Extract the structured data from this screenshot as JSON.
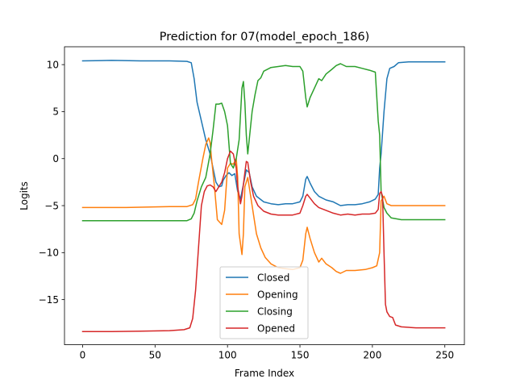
{
  "chart_data": {
    "type": "line",
    "title": "Prediction for 07(model_epoch_186)",
    "xlabel": "Frame Index",
    "ylabel": "Logits",
    "xlim": [
      -12.5,
      263.5
    ],
    "ylim": [
      -19.8,
      11.9
    ],
    "xticks": [
      0,
      50,
      100,
      150,
      200,
      250
    ],
    "yticks": [
      -15,
      -10,
      -5,
      0,
      5,
      10
    ],
    "grid": false,
    "legend_position": "lower-center",
    "series": [
      {
        "name": "Closed",
        "color": "#1f77b4",
        "points": [
          [
            0,
            10.4
          ],
          [
            20,
            10.45
          ],
          [
            40,
            10.4
          ],
          [
            60,
            10.4
          ],
          [
            72,
            10.35
          ],
          [
            75,
            10.2
          ],
          [
            77,
            8.5
          ],
          [
            79,
            6.0
          ],
          [
            82,
            4.0
          ],
          [
            85,
            2.0
          ],
          [
            88,
            0.5
          ],
          [
            90,
            -1.0
          ],
          [
            92,
            -2.5
          ],
          [
            94,
            -3.0
          ],
          [
            96,
            -2.9
          ],
          [
            97,
            -2.3
          ],
          [
            99,
            -1.8
          ],
          [
            101,
            -1.5
          ],
          [
            103,
            -1.8
          ],
          [
            105,
            -1.6
          ],
          [
            107,
            -3.5
          ],
          [
            109,
            -4.3
          ],
          [
            110,
            -3.5
          ],
          [
            112,
            -2.0
          ],
          [
            113,
            -1.2
          ],
          [
            115,
            -1.5
          ],
          [
            117,
            -3.0
          ],
          [
            120,
            -4.0
          ],
          [
            125,
            -4.6
          ],
          [
            130,
            -4.8
          ],
          [
            135,
            -4.9
          ],
          [
            140,
            -4.8
          ],
          [
            145,
            -4.8
          ],
          [
            150,
            -4.6
          ],
          [
            152,
            -4.0
          ],
          [
            154,
            -2.2
          ],
          [
            155,
            -1.9
          ],
          [
            157,
            -2.6
          ],
          [
            160,
            -3.5
          ],
          [
            163,
            -4.0
          ],
          [
            168,
            -4.4
          ],
          [
            173,
            -4.6
          ],
          [
            178,
            -5.0
          ],
          [
            183,
            -4.9
          ],
          [
            188,
            -4.9
          ],
          [
            193,
            -4.8
          ],
          [
            198,
            -4.6
          ],
          [
            202,
            -4.3
          ],
          [
            204,
            -3.8
          ],
          [
            205,
            -1.0
          ],
          [
            206,
            0.5
          ],
          [
            208,
            5.0
          ],
          [
            210,
            8.5
          ],
          [
            212,
            9.6
          ],
          [
            215,
            9.8
          ],
          [
            218,
            10.2
          ],
          [
            225,
            10.3
          ],
          [
            235,
            10.3
          ],
          [
            250,
            10.3
          ]
        ]
      },
      {
        "name": "Opening",
        "color": "#ff7f0e",
        "points": [
          [
            0,
            -5.2
          ],
          [
            30,
            -5.2
          ],
          [
            60,
            -5.1
          ],
          [
            72,
            -5.1
          ],
          [
            76,
            -4.9
          ],
          [
            78,
            -4.3
          ],
          [
            80,
            -2.5
          ],
          [
            83,
            0.0
          ],
          [
            85,
            1.5
          ],
          [
            87,
            2.2
          ],
          [
            88,
            1.7
          ],
          [
            89,
            0.0
          ],
          [
            91,
            -3.0
          ],
          [
            93,
            -6.5
          ],
          [
            96,
            -7.0
          ],
          [
            98,
            -5.5
          ],
          [
            100,
            -1.0
          ],
          [
            102,
            -0.5
          ],
          [
            104,
            -0.6
          ],
          [
            106,
            0.0
          ],
          [
            107,
            -2.0
          ],
          [
            108,
            -8.0
          ],
          [
            110,
            -10.2
          ],
          [
            111,
            -8.0
          ],
          [
            112,
            -3.0
          ],
          [
            114,
            -2.0
          ],
          [
            116,
            -4.0
          ],
          [
            118,
            -6.0
          ],
          [
            120,
            -8.0
          ],
          [
            123,
            -9.5
          ],
          [
            126,
            -10.5
          ],
          [
            130,
            -11.2
          ],
          [
            135,
            -11.6
          ],
          [
            140,
            -11.7
          ],
          [
            145,
            -11.8
          ],
          [
            150,
            -11.6
          ],
          [
            152,
            -10.8
          ],
          [
            154,
            -8.0
          ],
          [
            155,
            -7.3
          ],
          [
            157,
            -8.5
          ],
          [
            160,
            -10.0
          ],
          [
            163,
            -11.0
          ],
          [
            165,
            -10.6
          ],
          [
            168,
            -11.2
          ],
          [
            172,
            -11.6
          ],
          [
            175,
            -12.0
          ],
          [
            178,
            -12.2
          ],
          [
            182,
            -11.9
          ],
          [
            188,
            -11.9
          ],
          [
            195,
            -11.8
          ],
          [
            200,
            -11.6
          ],
          [
            203,
            -11.4
          ],
          [
            205,
            -10.0
          ],
          [
            206,
            -4.5
          ],
          [
            208,
            -4.0
          ],
          [
            210,
            -4.8
          ],
          [
            213,
            -5.0
          ],
          [
            220,
            -5.0
          ],
          [
            235,
            -5.0
          ],
          [
            250,
            -5.0
          ]
        ]
      },
      {
        "name": "Closing",
        "color": "#2ca02c",
        "points": [
          [
            0,
            -6.6
          ],
          [
            30,
            -6.6
          ],
          [
            60,
            -6.6
          ],
          [
            72,
            -6.6
          ],
          [
            75,
            -6.4
          ],
          [
            77,
            -5.8
          ],
          [
            79,
            -4.5
          ],
          [
            82,
            -3.0
          ],
          [
            85,
            -2.0
          ],
          [
            88,
            0.5
          ],
          [
            90,
            3.0
          ],
          [
            92,
            5.8
          ],
          [
            94,
            5.8
          ],
          [
            96,
            5.9
          ],
          [
            98,
            5.0
          ],
          [
            100,
            3.5
          ],
          [
            102,
            -0.5
          ],
          [
            104,
            -1.0
          ],
          [
            106,
            0.0
          ],
          [
            108,
            2.0
          ],
          [
            110,
            7.5
          ],
          [
            111,
            8.2
          ],
          [
            112,
            6.0
          ],
          [
            113,
            2.5
          ],
          [
            114,
            0.5
          ],
          [
            115,
            2.0
          ],
          [
            117,
            5.0
          ],
          [
            119,
            6.8
          ],
          [
            121,
            8.3
          ],
          [
            123,
            8.6
          ],
          [
            125,
            9.3
          ],
          [
            130,
            9.7
          ],
          [
            135,
            9.8
          ],
          [
            140,
            9.9
          ],
          [
            145,
            9.8
          ],
          [
            150,
            9.8
          ],
          [
            152,
            9.3
          ],
          [
            154,
            6.5
          ],
          [
            155,
            5.5
          ],
          [
            157,
            6.5
          ],
          [
            160,
            7.5
          ],
          [
            163,
            8.5
          ],
          [
            165,
            8.3
          ],
          [
            168,
            9.0
          ],
          [
            172,
            9.5
          ],
          [
            175,
            9.9
          ],
          [
            178,
            10.1
          ],
          [
            182,
            9.8
          ],
          [
            188,
            9.8
          ],
          [
            193,
            9.6
          ],
          [
            198,
            9.4
          ],
          [
            202,
            9.2
          ],
          [
            204,
            4.0
          ],
          [
            205,
            2.5
          ],
          [
            206,
            -3.5
          ],
          [
            208,
            -5.2
          ],
          [
            210,
            -5.8
          ],
          [
            213,
            -6.3
          ],
          [
            220,
            -6.5
          ],
          [
            235,
            -6.5
          ],
          [
            250,
            -6.5
          ]
        ]
      },
      {
        "name": "Opened",
        "color": "#d62728",
        "points": [
          [
            0,
            -18.4
          ],
          [
            20,
            -18.4
          ],
          [
            40,
            -18.35
          ],
          [
            60,
            -18.3
          ],
          [
            70,
            -18.2
          ],
          [
            74,
            -18.0
          ],
          [
            76,
            -17.0
          ],
          [
            78,
            -14.0
          ],
          [
            80,
            -9.5
          ],
          [
            82,
            -5.0
          ],
          [
            84,
            -3.5
          ],
          [
            86,
            -2.9
          ],
          [
            88,
            -2.8
          ],
          [
            90,
            -3.0
          ],
          [
            92,
            -3.5
          ],
          [
            94,
            -3.0
          ],
          [
            96,
            -2.5
          ],
          [
            98,
            -1.5
          ],
          [
            100,
            0.0
          ],
          [
            102,
            0.8
          ],
          [
            104,
            0.5
          ],
          [
            106,
            -1.0
          ],
          [
            107,
            -3.0
          ],
          [
            109,
            -4.8
          ],
          [
            110,
            -4.0
          ],
          [
            112,
            -1.5
          ],
          [
            113,
            -0.3
          ],
          [
            114,
            -0.4
          ],
          [
            116,
            -2.5
          ],
          [
            118,
            -4.0
          ],
          [
            121,
            -5.0
          ],
          [
            125,
            -5.6
          ],
          [
            130,
            -5.9
          ],
          [
            135,
            -6.0
          ],
          [
            140,
            -6.0
          ],
          [
            145,
            -6.0
          ],
          [
            150,
            -5.8
          ],
          [
            152,
            -5.0
          ],
          [
            154,
            -4.0
          ],
          [
            155,
            -3.8
          ],
          [
            157,
            -4.2
          ],
          [
            160,
            -4.8
          ],
          [
            163,
            -5.2
          ],
          [
            168,
            -5.5
          ],
          [
            173,
            -5.8
          ],
          [
            178,
            -6.0
          ],
          [
            183,
            -5.9
          ],
          [
            188,
            -6.0
          ],
          [
            193,
            -5.9
          ],
          [
            198,
            -5.9
          ],
          [
            202,
            -5.8
          ],
          [
            204,
            -5.4
          ],
          [
            205,
            -3.7
          ],
          [
            206,
            -3.5
          ],
          [
            207,
            -4.0
          ],
          [
            208,
            -10.0
          ],
          [
            209,
            -15.5
          ],
          [
            210,
            -16.3
          ],
          [
            212,
            -16.8
          ],
          [
            214,
            -16.9
          ],
          [
            216,
            -17.7
          ],
          [
            220,
            -17.9
          ],
          [
            230,
            -18.0
          ],
          [
            240,
            -18.0
          ],
          [
            250,
            -18.0
          ]
        ]
      }
    ]
  }
}
